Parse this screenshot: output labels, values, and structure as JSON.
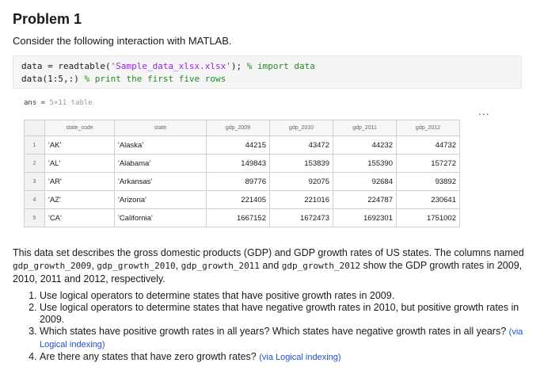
{
  "heading": "Problem 1",
  "intro": "Consider the following interaction with MATLAB.",
  "code": {
    "line1_a": "data = readtable(",
    "line1_str": "'Sample_data_xlsx.xlsx'",
    "line1_b": "); ",
    "line1_comment": "% import data",
    "line2_a": "data(1:5,:) ",
    "line2_comment": "% print the first five rows"
  },
  "ans": {
    "label": "ans =",
    "desc": "5×11 table"
  },
  "ellipsis": "...",
  "table": {
    "headers": [
      "state_code",
      "state",
      "gdp_2009",
      "gdp_2010",
      "gdp_2011",
      "gdp_2012"
    ],
    "rows": [
      {
        "idx": "1",
        "code": "'AK'",
        "state": "'Alaska'",
        "g2009": "44215",
        "g2010": "43472",
        "g2011": "44232",
        "g2012": "44732"
      },
      {
        "idx": "2",
        "code": "'AL'",
        "state": "'Alabama'",
        "g2009": "149843",
        "g2010": "153839",
        "g2011": "155390",
        "g2012": "157272"
      },
      {
        "idx": "3",
        "code": "'AR'",
        "state": "'Arkansas'",
        "g2009": "89776",
        "g2010": "92075",
        "g2011": "92684",
        "g2012": "93892"
      },
      {
        "idx": "4",
        "code": "'AZ'",
        "state": "'Arizona'",
        "g2009": "221405",
        "g2010": "221016",
        "g2011": "224787",
        "g2012": "230641"
      },
      {
        "idx": "5",
        "code": "'CA'",
        "state": "'California'",
        "g2009": "1667152",
        "g2010": "1672473",
        "g2011": "1692301",
        "g2012": "1751002"
      }
    ]
  },
  "paragraph": {
    "p1": "This data set describes the gross domestic products (GDP) and GDP growth rates of US states. The columns named ",
    "c1": "gdp_growth_2009",
    "s1": ", ",
    "c2": "gdp_growth_2010",
    "s2": ", ",
    "c3": "gdp_growth_2011",
    "s3": " and ",
    "c4": "gdp_growth_2012",
    "p2": " show the GDP growth rates in 2009, 2010, 2011 and 2012, respectively."
  },
  "tasks": [
    {
      "text": "Use logical operators to determine states that have positive growth rates in 2009.",
      "hint": ""
    },
    {
      "text": "Use logical operators to determine states that have negative growth rates in 2010, but positive growth rates in 2009.",
      "hint": ""
    },
    {
      "text": "Which states have positive growth rates in all years? Which states have negative growth rates in all years? ",
      "hint": "(via Logical indexing)"
    },
    {
      "text": "Are there any states that have zero growth rates? ",
      "hint": "(via Logical indexing)"
    }
  ]
}
